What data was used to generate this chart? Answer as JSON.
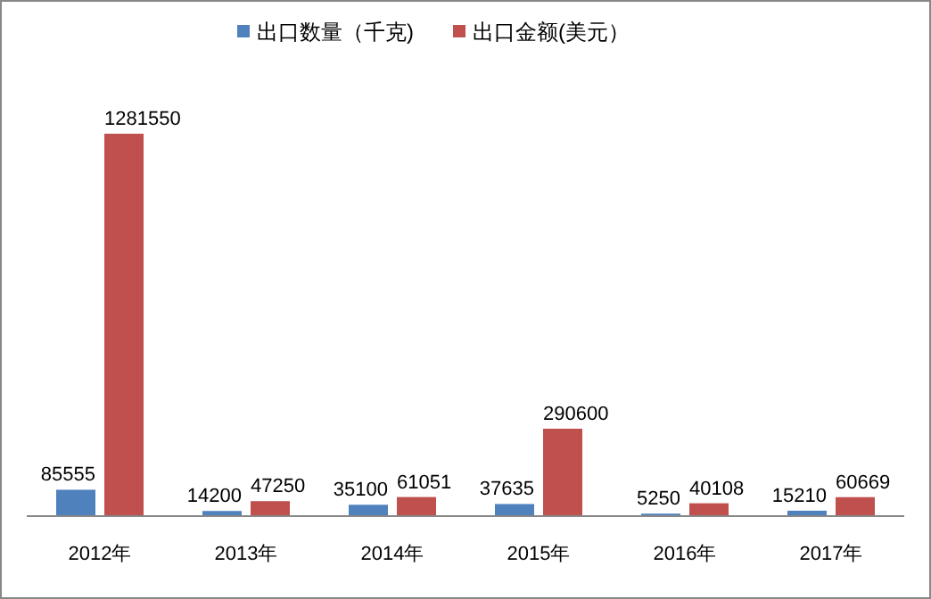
{
  "chart_data": {
    "type": "bar",
    "categories": [
      "2012年",
      "2013年",
      "2014年",
      "2015年",
      "2016年",
      "2017年"
    ],
    "series": [
      {
        "name": "出口数量（千克)",
        "color": "#4f81bd",
        "values": [
          85555,
          14200,
          35100,
          37635,
          5250,
          15210
        ]
      },
      {
        "name": "出口金额(美元）",
        "color": "#c0504d",
        "values": [
          1281550,
          47250,
          61051,
          290600,
          40108,
          60669
        ]
      }
    ],
    "data_labels": true,
    "legend": "top"
  }
}
